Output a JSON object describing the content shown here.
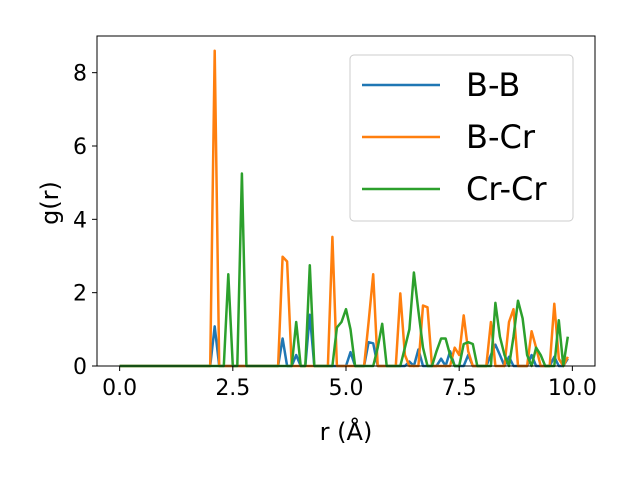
{
  "chart_data": {
    "type": "line",
    "xlabel": "r (Å)",
    "ylabel": "g(r)",
    "xlim": [
      -0.5,
      10.5
    ],
    "ylim": [
      0,
      9
    ],
    "xticks": [
      0.0,
      2.5,
      5.0,
      7.5,
      10.0
    ],
    "xtick_labels": [
      "0.0",
      "2.5",
      "5.0",
      "7.5",
      "10.0"
    ],
    "yticks": [
      0,
      2,
      4,
      6,
      8
    ],
    "ytick_labels": [
      "0",
      "2",
      "4",
      "6",
      "8"
    ],
    "grid": false,
    "legend_position": "upper-right",
    "series": [
      {
        "name": "B-B",
        "color": "#1f77b4",
        "points": [
          [
            0.0,
            0
          ],
          [
            2.0,
            0
          ],
          [
            2.1,
            1.08
          ],
          [
            2.2,
            0
          ],
          [
            3.5,
            0
          ],
          [
            3.6,
            0.75
          ],
          [
            3.7,
            0
          ],
          [
            3.8,
            0
          ],
          [
            3.9,
            0.3
          ],
          [
            4.0,
            0
          ],
          [
            4.1,
            0
          ],
          [
            4.2,
            1.4
          ],
          [
            4.3,
            0
          ],
          [
            5.0,
            0
          ],
          [
            5.1,
            0.38
          ],
          [
            5.2,
            0
          ],
          [
            5.4,
            0
          ],
          [
            5.5,
            0.65
          ],
          [
            5.6,
            0.62
          ],
          [
            5.7,
            0
          ],
          [
            6.3,
            0
          ],
          [
            6.4,
            0.12
          ],
          [
            6.5,
            0
          ],
          [
            6.6,
            0.45
          ],
          [
            6.7,
            0
          ],
          [
            7.0,
            0
          ],
          [
            7.1,
            0.2
          ],
          [
            7.2,
            0
          ],
          [
            7.3,
            0.4
          ],
          [
            7.4,
            0
          ],
          [
            7.6,
            0
          ],
          [
            7.7,
            0.3
          ],
          [
            7.8,
            0
          ],
          [
            8.1,
            0
          ],
          [
            8.2,
            0.3
          ],
          [
            8.3,
            0.58
          ],
          [
            8.4,
            0.3
          ],
          [
            8.5,
            0
          ],
          [
            8.6,
            0.25
          ],
          [
            8.7,
            0
          ],
          [
            9.0,
            0
          ],
          [
            9.1,
            0.3
          ],
          [
            9.2,
            0
          ],
          [
            9.5,
            0
          ],
          [
            9.6,
            0.25
          ],
          [
            9.7,
            0
          ],
          [
            9.8,
            0
          ],
          [
            9.9,
            0.2
          ]
        ]
      },
      {
        "name": "B-Cr",
        "color": "#ff7f0e",
        "points": [
          [
            0.0,
            0
          ],
          [
            2.0,
            0
          ],
          [
            2.1,
            8.6
          ],
          [
            2.2,
            0
          ],
          [
            3.5,
            0
          ],
          [
            3.6,
            2.98
          ],
          [
            3.7,
            2.85
          ],
          [
            3.8,
            0
          ],
          [
            4.6,
            0
          ],
          [
            4.7,
            3.52
          ],
          [
            4.8,
            0
          ],
          [
            5.4,
            0
          ],
          [
            5.5,
            1.2
          ],
          [
            5.6,
            2.5
          ],
          [
            5.7,
            0
          ],
          [
            6.1,
            0
          ],
          [
            6.2,
            1.98
          ],
          [
            6.3,
            0.3
          ],
          [
            6.4,
            0
          ],
          [
            6.6,
            0
          ],
          [
            6.7,
            1.65
          ],
          [
            6.8,
            1.6
          ],
          [
            6.9,
            0
          ],
          [
            7.3,
            0
          ],
          [
            7.4,
            0.5
          ],
          [
            7.5,
            0.3
          ],
          [
            7.6,
            1.38
          ],
          [
            7.7,
            0.4
          ],
          [
            7.8,
            0
          ],
          [
            8.1,
            0
          ],
          [
            8.2,
            1.2
          ],
          [
            8.3,
            0
          ],
          [
            8.5,
            0
          ],
          [
            8.6,
            1.2
          ],
          [
            8.7,
            1.55
          ],
          [
            8.8,
            0
          ],
          [
            9.0,
            0
          ],
          [
            9.1,
            0.95
          ],
          [
            9.2,
            0.5
          ],
          [
            9.3,
            0
          ],
          [
            9.5,
            0
          ],
          [
            9.6,
            1.7
          ],
          [
            9.7,
            0.2
          ],
          [
            9.8,
            0
          ],
          [
            9.9,
            0.25
          ]
        ]
      },
      {
        "name": "Cr-Cr",
        "color": "#2ca02c",
        "points": [
          [
            0.0,
            0
          ],
          [
            2.3,
            0
          ],
          [
            2.4,
            2.5
          ],
          [
            2.5,
            0
          ],
          [
            2.6,
            0
          ],
          [
            2.7,
            5.25
          ],
          [
            2.8,
            0
          ],
          [
            3.8,
            0
          ],
          [
            3.9,
            1.2
          ],
          [
            4.0,
            0
          ],
          [
            4.1,
            0
          ],
          [
            4.2,
            2.75
          ],
          [
            4.3,
            0
          ],
          [
            4.7,
            0
          ],
          [
            4.8,
            1.05
          ],
          [
            4.9,
            1.2
          ],
          [
            5.0,
            1.55
          ],
          [
            5.1,
            1.0
          ],
          [
            5.2,
            0
          ],
          [
            5.6,
            0
          ],
          [
            5.7,
            0.5
          ],
          [
            5.8,
            1.15
          ],
          [
            5.9,
            0
          ],
          [
            6.2,
            0
          ],
          [
            6.3,
            0.5
          ],
          [
            6.4,
            1.0
          ],
          [
            6.5,
            2.55
          ],
          [
            6.6,
            1.5
          ],
          [
            6.7,
            0.5
          ],
          [
            6.8,
            0
          ],
          [
            6.9,
            0
          ],
          [
            7.0,
            0.4
          ],
          [
            7.1,
            0.75
          ],
          [
            7.2,
            0.75
          ],
          [
            7.3,
            0.3
          ],
          [
            7.4,
            0
          ],
          [
            7.5,
            0
          ],
          [
            7.6,
            0.6
          ],
          [
            7.7,
            0.65
          ],
          [
            7.8,
            0.6
          ],
          [
            7.9,
            0
          ],
          [
            8.2,
            0
          ],
          [
            8.3,
            1.72
          ],
          [
            8.4,
            0.8
          ],
          [
            8.5,
            0.3
          ],
          [
            8.6,
            0
          ],
          [
            8.7,
            0.8
          ],
          [
            8.8,
            1.78
          ],
          [
            8.9,
            1.3
          ],
          [
            9.0,
            0.3
          ],
          [
            9.1,
            0
          ],
          [
            9.2,
            0.5
          ],
          [
            9.3,
            0.3
          ],
          [
            9.4,
            0
          ],
          [
            9.6,
            0
          ],
          [
            9.7,
            1.25
          ],
          [
            9.8,
            0
          ],
          [
            9.9,
            0.8
          ]
        ]
      }
    ]
  }
}
